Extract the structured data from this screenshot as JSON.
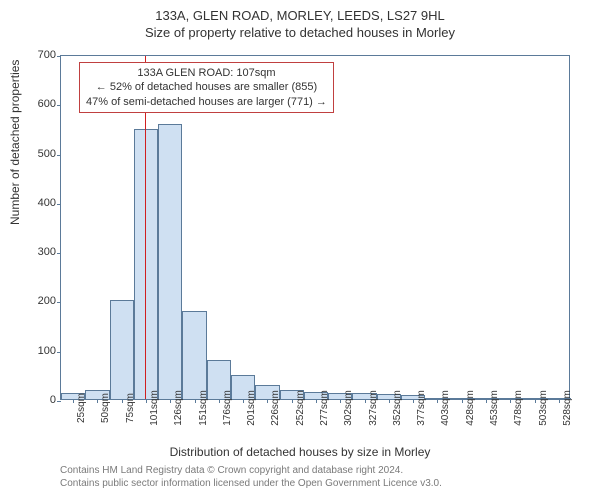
{
  "chart": {
    "type": "histogram",
    "title_main": "133A, GLEN ROAD, MORLEY, LEEDS, LS27 9HL",
    "title_sub": "Size of property relative to detached houses in Morley",
    "y_label": "Number of detached properties",
    "x_label": "Distribution of detached houses by size in Morley",
    "ylim": [
      0,
      700
    ],
    "ytick_step": 100,
    "y_ticks": [
      0,
      100,
      200,
      300,
      400,
      500,
      600,
      700
    ],
    "x_categories": [
      "25sqm",
      "50sqm",
      "75sqm",
      "101sqm",
      "126sqm",
      "151sqm",
      "176sqm",
      "201sqm",
      "226sqm",
      "252sqm",
      "277sqm",
      "302sqm",
      "327sqm",
      "352sqm",
      "377sqm",
      "403sqm",
      "428sqm",
      "453sqm",
      "478sqm",
      "503sqm",
      "528sqm"
    ],
    "values": [
      12,
      18,
      200,
      548,
      558,
      178,
      80,
      48,
      28,
      18,
      15,
      12,
      12,
      10,
      8,
      2,
      2,
      2,
      1,
      1,
      1
    ],
    "bar_fill": "#cfe0f2",
    "bar_stroke": "#5b7a99",
    "bar_width_ratio": 1.0,
    "border_color": "#5b7a99",
    "background_color": "#ffffff",
    "title_fontsize": 13,
    "label_fontsize": 12,
    "tick_fontsize": 11,
    "marker": {
      "position_label": "107sqm",
      "fraction": 0.164,
      "color": "#d02020"
    },
    "annotation": {
      "line1": "133A GLEN ROAD: 107sqm",
      "line2": "← 52% of detached houses are smaller (855)",
      "line3": "47% of semi-detached houses are larger (771) →",
      "border_color": "#c04040",
      "bg_color": "#ffffff"
    },
    "footer1": "Contains HM Land Registry data © Crown copyright and database right 2024.",
    "footer2": "Contains public sector information licensed under the Open Government Licence v3.0."
  }
}
